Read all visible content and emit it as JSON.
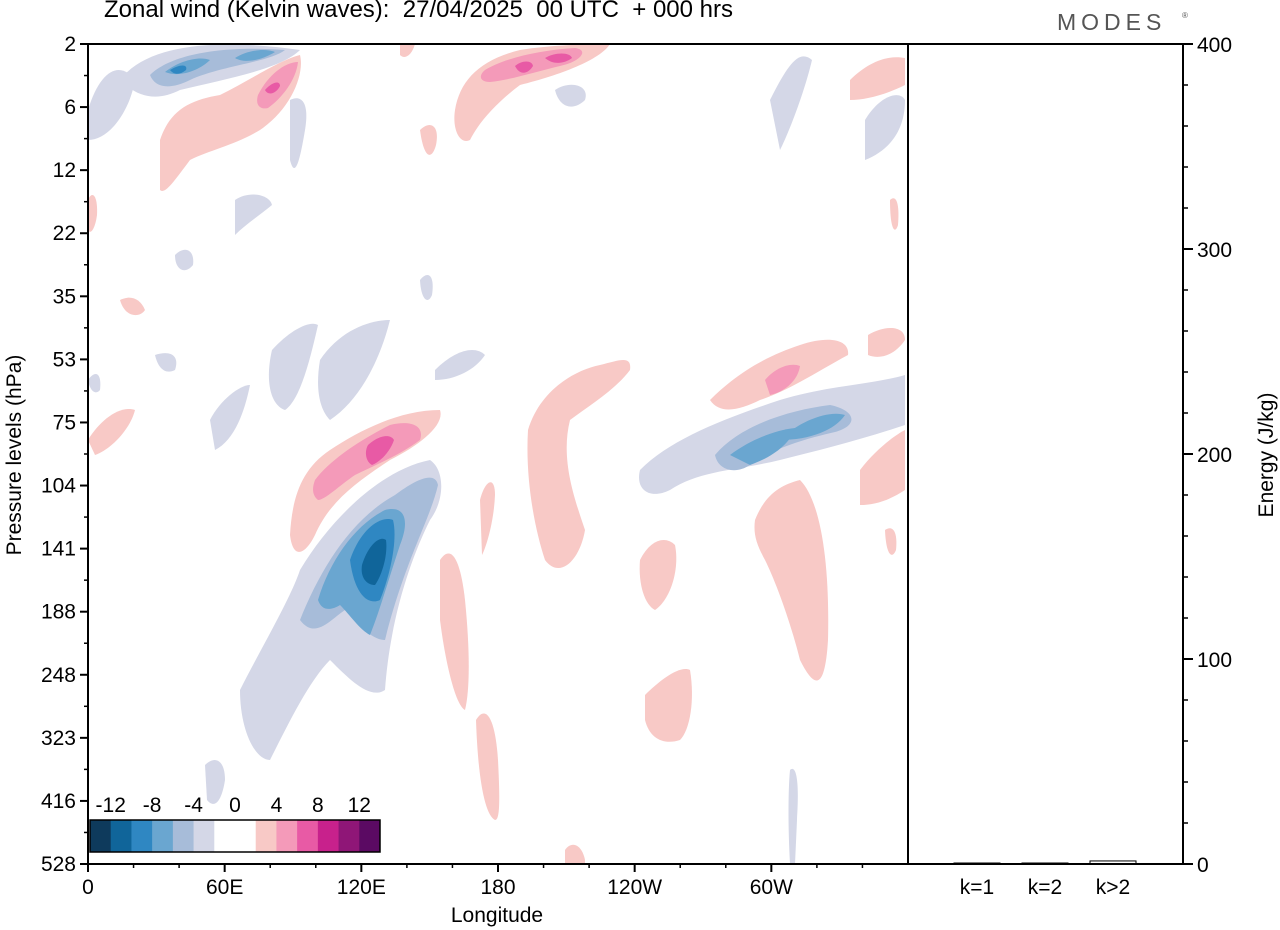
{
  "header": {
    "title": "Zonal wind (Kelvin waves):  27/04/2025  00 UTC  + 000 hrs",
    "brand": "MODES",
    "brand_mark": "®"
  },
  "colors": {
    "axis": "#000000",
    "scale": [
      "#0e3a5c",
      "#10659a",
      "#2f87c2",
      "#6aa6d0",
      "#a7bcd9",
      "#d4d7e7",
      "#ffffff",
      "#ffffff",
      "#f8c9c6",
      "#f49ab9",
      "#e85aa5",
      "#c8218c",
      "#8f1677",
      "#5b0a63"
    ]
  },
  "chart_data": [
    {
      "type": "heatmap",
      "title": "Zonal wind (Kelvin waves)",
      "xlabel": "Longitude",
      "ylabel": "Pressure levels (hPa)",
      "x_ticks": [
        "0",
        "60E",
        "120E",
        "180",
        "120W",
        "60W"
      ],
      "y_ticks": [
        "2",
        "6",
        "12",
        "22",
        "35",
        "53",
        "75",
        "104",
        "141",
        "188",
        "248",
        "323",
        "416",
        "528"
      ],
      "colorbar_labels": [
        "-12",
        "-8",
        "-4",
        "0",
        "4",
        "8",
        "12"
      ],
      "colorbar_levels": [
        -14,
        -12,
        -10,
        -8,
        -6,
        -4,
        -2,
        0,
        2,
        4,
        6,
        8,
        10,
        12,
        14
      ],
      "features": [
        {
          "sign": "negative",
          "lon_center": 120,
          "p_center": 141,
          "min_value": -11
        },
        {
          "sign": "positive",
          "lon_center": 112,
          "p_center": 90,
          "max_value": 7
        },
        {
          "sign": "positive",
          "lon_center": 180,
          "p_center": 4,
          "max_value": 7
        },
        {
          "sign": "negative",
          "lon_center": 290,
          "p_center": 90,
          "min_value": -7
        },
        {
          "sign": "positive",
          "lon_center": 295,
          "p_center": 60,
          "max_value": 6
        }
      ]
    },
    {
      "type": "bar",
      "categories": [
        "k=1",
        "k=2",
        "k>2"
      ],
      "values": [
        0,
        0,
        1
      ],
      "ylabel": "Energy (J/kg)",
      "ylim": [
        0,
        400
      ],
      "y_ticks": [
        "0",
        "100",
        "200",
        "300",
        "400"
      ]
    }
  ]
}
